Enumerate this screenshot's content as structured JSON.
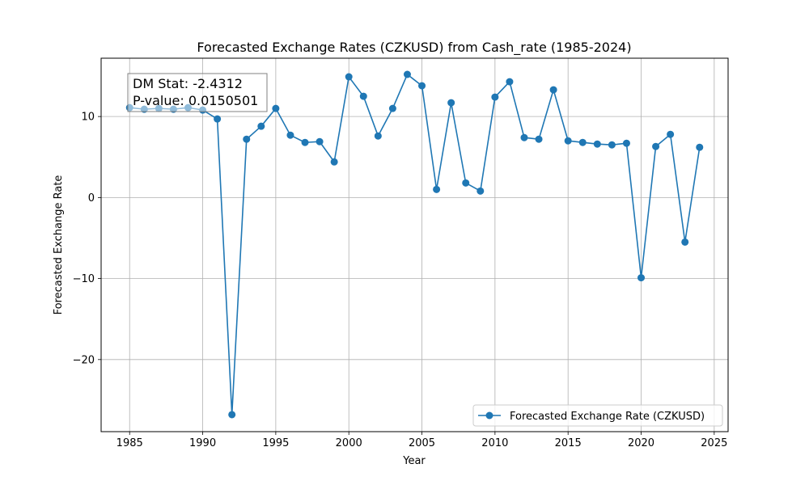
{
  "chart_data": {
    "type": "line",
    "title": "Forecasted Exchange Rates (CZKUSD) from Cash_rate (1985-2024)",
    "xlabel": "Year",
    "ylabel": "Forecasted Exchange Rate",
    "xlim": [
      1983.05,
      2025.95
    ],
    "ylim": [
      -28.9,
      17.2
    ],
    "xticks": [
      1985,
      1990,
      1995,
      2000,
      2005,
      2010,
      2015,
      2020,
      2025
    ],
    "yticks": [
      -20,
      -10,
      0,
      10
    ],
    "ytick_labels": [
      "−20",
      "−10",
      "0",
      "10"
    ],
    "grid": true,
    "legend_position": "lower-right",
    "series": [
      {
        "name": "Forecasted Exchange Rate (CZKUSD)",
        "color": "#1f77b4",
        "x": [
          1985,
          1986,
          1987,
          1988,
          1989,
          1990,
          1991,
          1992,
          1993,
          1994,
          1995,
          1996,
          1997,
          1998,
          1999,
          2000,
          2001,
          2002,
          2003,
          2004,
          2005,
          2006,
          2007,
          2008,
          2009,
          2010,
          2011,
          2012,
          2013,
          2014,
          2015,
          2016,
          2017,
          2018,
          2019,
          2020,
          2021,
          2022,
          2023,
          2024
        ],
        "y": [
          11.1,
          10.9,
          11.0,
          10.9,
          11.1,
          10.8,
          9.7,
          -26.8,
          7.2,
          8.8,
          11.0,
          7.7,
          6.8,
          6.9,
          4.4,
          14.9,
          12.5,
          7.6,
          11.0,
          15.2,
          13.8,
          1.0,
          11.7,
          1.8,
          0.8,
          12.4,
          14.3,
          7.4,
          7.2,
          13.3,
          7.0,
          6.8,
          6.6,
          6.5,
          6.7,
          -9.9,
          6.3,
          7.8,
          -5.5,
          6.2
        ]
      }
    ],
    "annotation": {
      "line1": "DM Stat: -2.4312",
      "line2": "P-value: 0.0150501"
    }
  }
}
